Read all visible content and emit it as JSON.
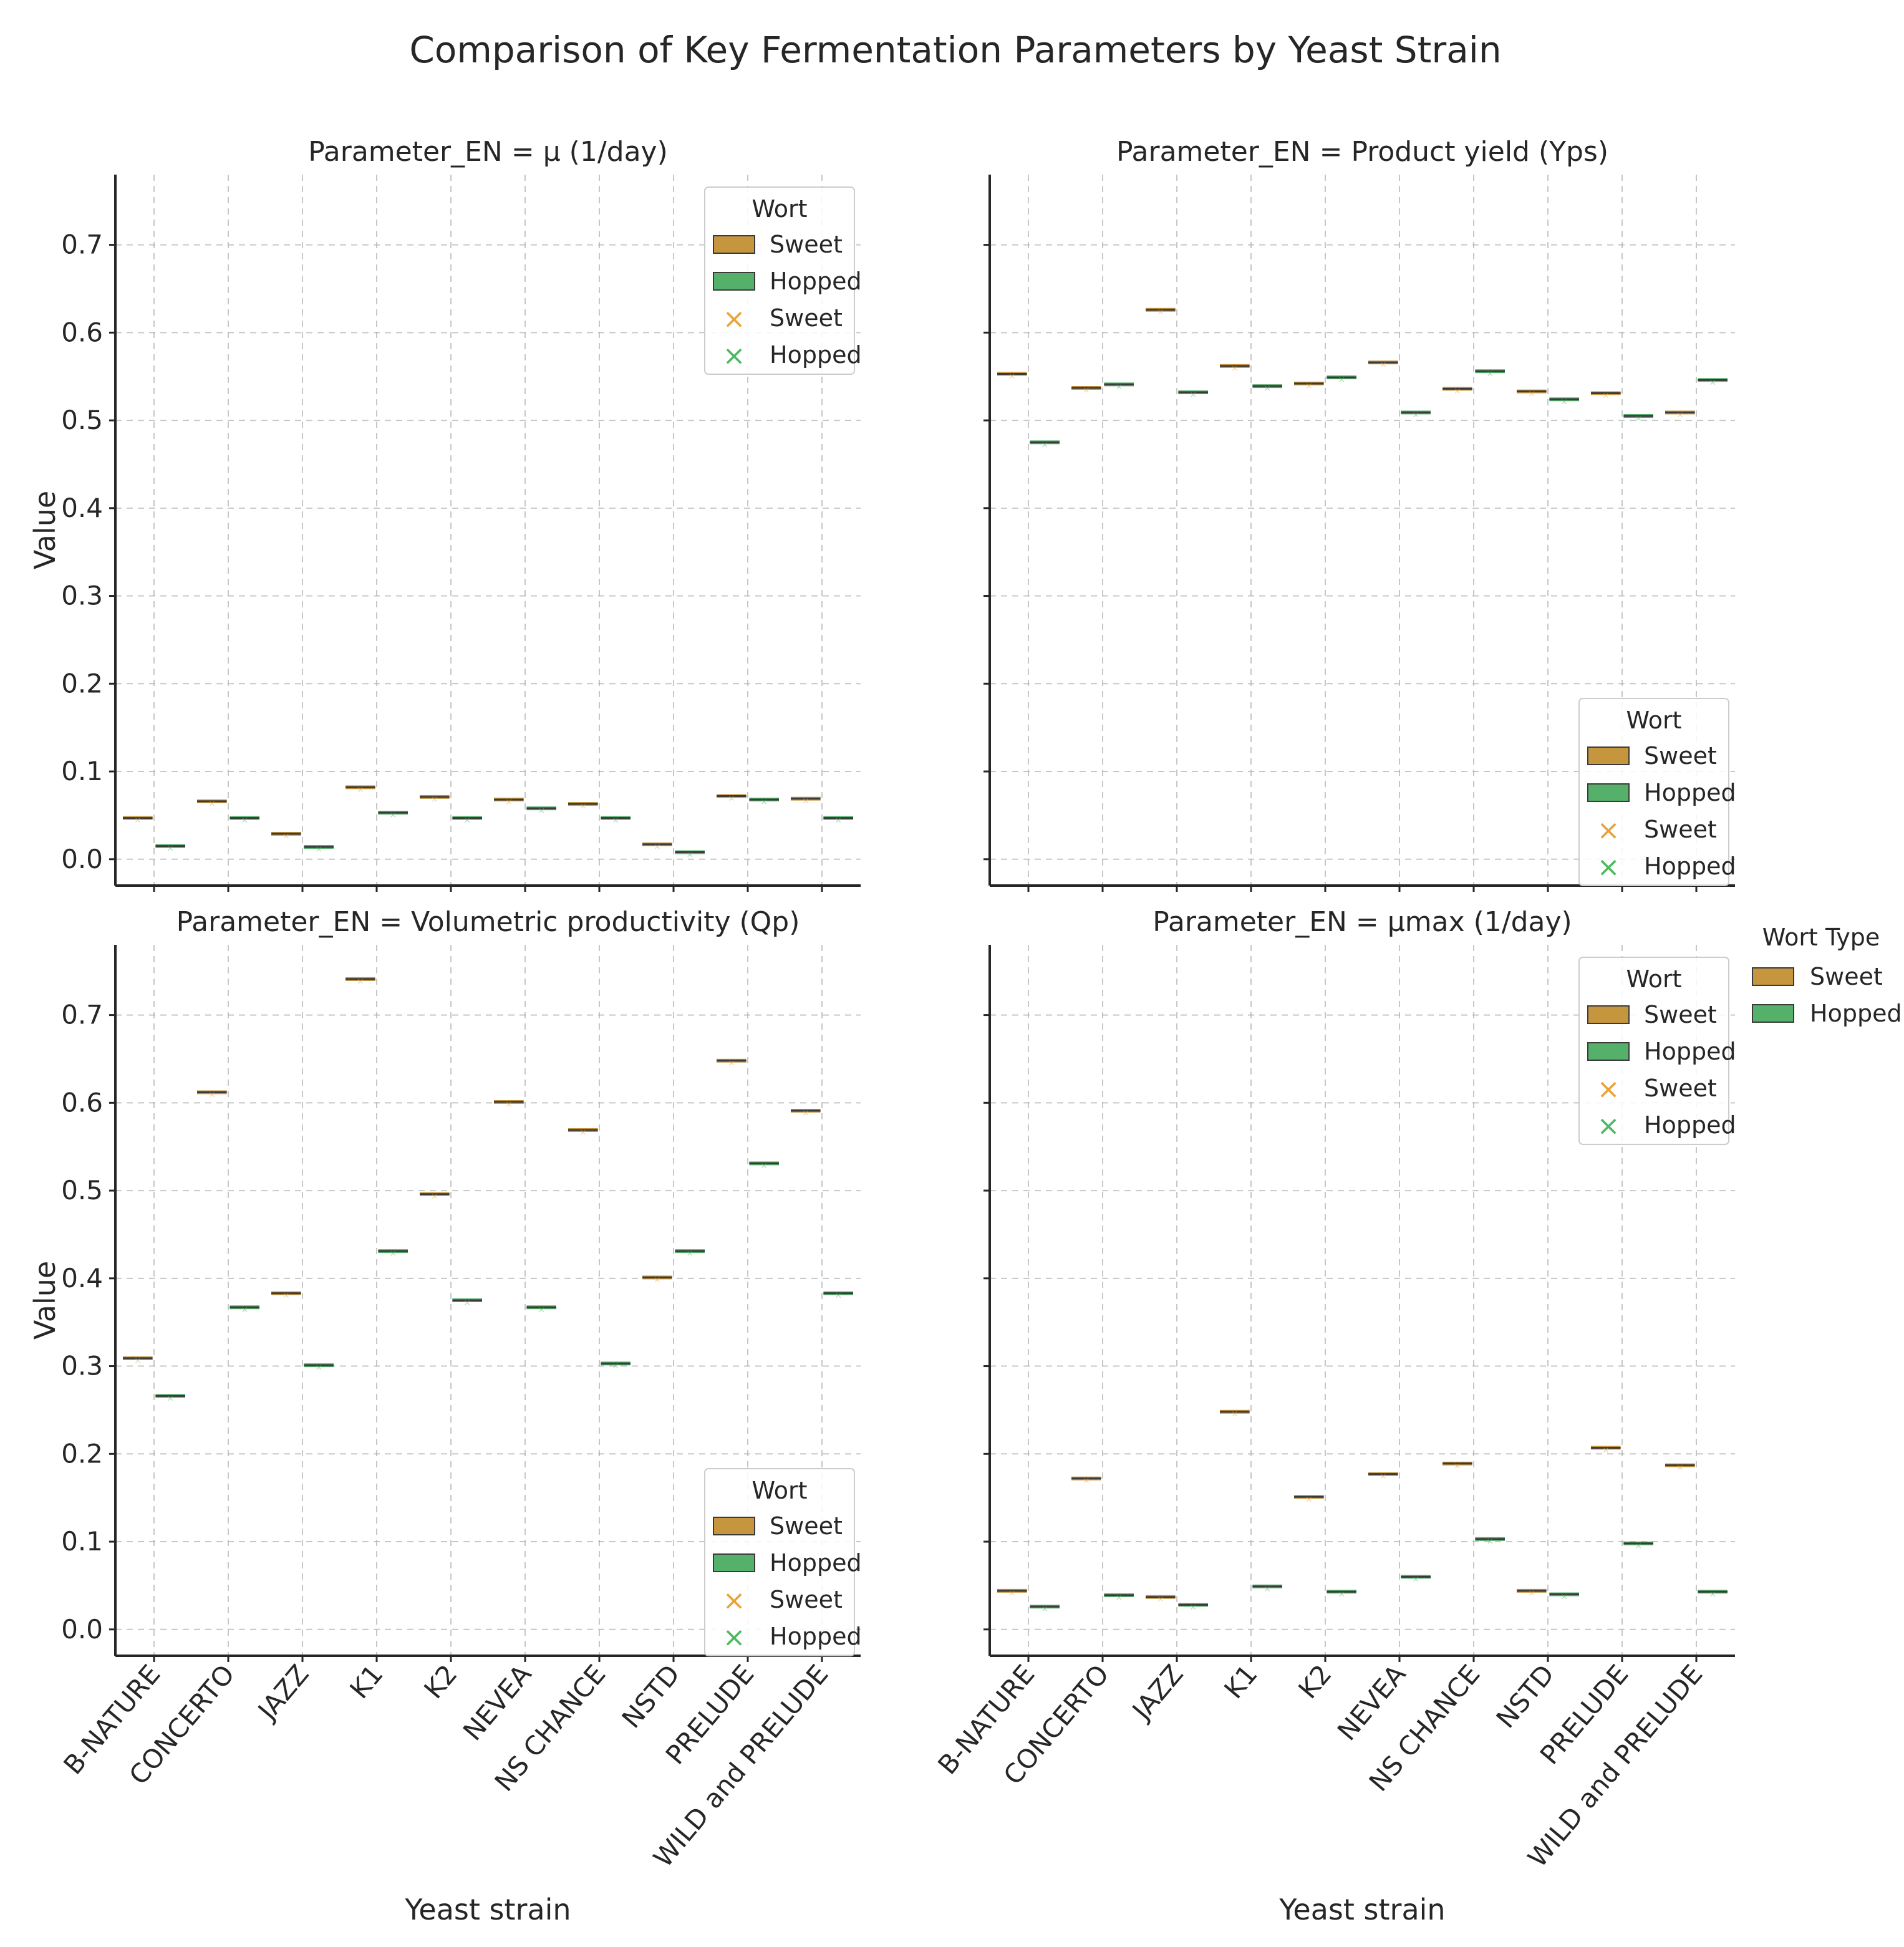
{
  "figure": {
    "title": "Comparison of Key Fermentation Parameters by Yeast Strain",
    "xlabel": "Yeast strain",
    "ylabel": "Value"
  },
  "colors": {
    "sweet": "#c6963f",
    "hopped": "#55b06a",
    "sweet_marker": "#e8a33a",
    "hopped_marker": "#4db85f",
    "median": "#3a3a3a"
  },
  "legend": {
    "title": "Wort",
    "entries": [
      "Sweet",
      "Hopped",
      "Sweet",
      "Hopped"
    ]
  },
  "outer_legend": {
    "title": "Wort Type",
    "entries": [
      "Sweet",
      "Hopped"
    ]
  },
  "chart_data": [
    {
      "type": "box",
      "title": "Parameter_EN = μ (1/day)",
      "xlabel": "",
      "ylabel": "Value",
      "ylim": [
        -0.03,
        0.78
      ],
      "yticks": [
        "0.0",
        "0.1",
        "0.2",
        "0.3",
        "0.4",
        "0.5",
        "0.6",
        "0.7"
      ],
      "legend_position": "top-right",
      "categories": [
        "B-NATURE",
        "CONCERTO",
        "JAZZ",
        "K1",
        "K2",
        "NEVEA",
        "NS CHANCE",
        "NSTD",
        "PRELUDE",
        "WILD and PRELUDE"
      ],
      "series": [
        {
          "name": "Sweet",
          "values": [
            0.047,
            0.066,
            0.029,
            0.082,
            0.071,
            0.068,
            0.063,
            0.017,
            0.072,
            0.069
          ]
        },
        {
          "name": "Hopped",
          "values": [
            0.015,
            0.047,
            0.014,
            0.053,
            0.047,
            0.058,
            0.047,
            0.008,
            0.068,
            0.047
          ]
        }
      ]
    },
    {
      "type": "box",
      "title": "Parameter_EN = Product yield (Yps)",
      "xlabel": "",
      "ylabel": "",
      "ylim": [
        -0.03,
        0.78
      ],
      "yticks": [
        "0.0",
        "0.1",
        "0.2",
        "0.3",
        "0.4",
        "0.5",
        "0.6",
        "0.7"
      ],
      "legend_position": "bottom-right",
      "categories": [
        "B-NATURE",
        "CONCERTO",
        "JAZZ",
        "K1",
        "K2",
        "NEVEA",
        "NS CHANCE",
        "NSTD",
        "PRELUDE",
        "WILD and PRELUDE"
      ],
      "series": [
        {
          "name": "Sweet",
          "values": [
            0.553,
            0.537,
            0.626,
            0.562,
            0.542,
            0.566,
            0.536,
            0.533,
            0.531,
            0.509
          ]
        },
        {
          "name": "Hopped",
          "values": [
            0.475,
            0.541,
            0.532,
            0.539,
            0.549,
            0.509,
            0.556,
            0.524,
            0.505,
            0.546
          ]
        }
      ]
    },
    {
      "type": "box",
      "title": "Parameter_EN = Volumetric productivity (Qp)",
      "xlabel": "Yeast strain",
      "ylabel": "Value",
      "ylim": [
        -0.03,
        0.78
      ],
      "yticks": [
        "0.0",
        "0.1",
        "0.2",
        "0.3",
        "0.4",
        "0.5",
        "0.6",
        "0.7"
      ],
      "legend_position": "bottom-right",
      "categories": [
        "B-NATURE",
        "CONCERTO",
        "JAZZ",
        "K1",
        "K2",
        "NEVEA",
        "NS CHANCE",
        "NSTD",
        "PRELUDE",
        "WILD and PRELUDE"
      ],
      "series": [
        {
          "name": "Sweet",
          "values": [
            0.309,
            0.612,
            0.383,
            0.741,
            0.496,
            0.601,
            0.569,
            0.401,
            0.648,
            0.591
          ]
        },
        {
          "name": "Hopped",
          "values": [
            0.266,
            0.367,
            0.301,
            0.431,
            0.375,
            0.367,
            0.303,
            0.431,
            0.531,
            0.383
          ]
        }
      ]
    },
    {
      "type": "box",
      "title": "Parameter_EN = μmax (1/day)",
      "xlabel": "Yeast strain",
      "ylabel": "",
      "ylim": [
        -0.03,
        0.78
      ],
      "yticks": [
        "0.0",
        "0.1",
        "0.2",
        "0.3",
        "0.4",
        "0.5",
        "0.6",
        "0.7"
      ],
      "legend_position": "top-right",
      "categories": [
        "B-NATURE",
        "CONCERTO",
        "JAZZ",
        "K1",
        "K2",
        "NEVEA",
        "NS CHANCE",
        "NSTD",
        "PRELUDE",
        "WILD and PRELUDE"
      ],
      "series": [
        {
          "name": "Sweet",
          "values": [
            0.044,
            0.172,
            0.037,
            0.248,
            0.151,
            0.177,
            0.189,
            0.044,
            0.207,
            0.187
          ]
        },
        {
          "name": "Hopped",
          "values": [
            0.026,
            0.039,
            0.028,
            0.049,
            0.043,
            0.06,
            0.103,
            0.04,
            0.098,
            0.043
          ]
        }
      ]
    }
  ]
}
